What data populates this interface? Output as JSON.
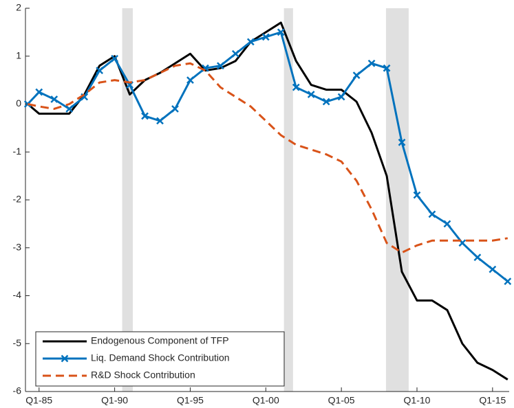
{
  "chart_data": {
    "type": "line",
    "x": [
      1984.25,
      1985,
      1986,
      1987,
      1988,
      1989,
      1990,
      1991,
      1992,
      1993,
      1994,
      1995,
      1996,
      1997,
      1998,
      1999,
      2000,
      2001,
      2002,
      2003,
      2004,
      2005,
      2006,
      2007,
      2008,
      2009,
      2010,
      2011,
      2012,
      2013,
      2014,
      2015,
      2016
    ],
    "series": [
      {
        "name": "Endogenous Component of TFP",
        "color": "#000000",
        "style": "solid",
        "values": [
          0,
          -0.2,
          -0.2,
          -0.2,
          0.2,
          0.8,
          1.0,
          0.2,
          0.5,
          0.65,
          0.85,
          1.05,
          0.7,
          0.75,
          0.9,
          1.3,
          1.5,
          1.7,
          0.9,
          0.4,
          0.3,
          0.3,
          0.05,
          -0.6,
          -1.5,
          -3.5,
          -4.1,
          -4.1,
          -4.3,
          -5.0,
          -5.4,
          -5.55,
          -5.75
        ]
      },
      {
        "name": "Liq. Demand Shock Contribution",
        "color": "#0072bd",
        "style": "solid-x",
        "values": [
          0,
          0.25,
          0.1,
          -0.1,
          0.15,
          0.7,
          0.95,
          0.4,
          -0.25,
          -0.35,
          -0.1,
          0.5,
          0.75,
          0.8,
          1.05,
          1.3,
          1.4,
          1.5,
          0.35,
          0.2,
          0.05,
          0.15,
          0.6,
          0.85,
          0.75,
          -0.8,
          -1.9,
          -2.3,
          -2.5,
          -2.9,
          -3.2,
          -3.45,
          -3.7
        ]
      },
      {
        "name": "R&D Shock Contribution",
        "color": "#d95319",
        "style": "dashed",
        "values": [
          0,
          -0.05,
          -0.1,
          0,
          0.2,
          0.45,
          0.5,
          0.45,
          0.5,
          0.65,
          0.8,
          0.85,
          0.7,
          0.35,
          0.15,
          -0.05,
          -0.35,
          -0.65,
          -0.85,
          -0.95,
          -1.05,
          -1.2,
          -1.6,
          -2.2,
          -2.9,
          -3.1,
          -2.95,
          -2.85,
          -2.85,
          -2.85,
          -2.85,
          -2.85,
          -2.8
        ]
      }
    ],
    "recessions": [
      [
        1990.5,
        1991.2
      ],
      [
        2001.2,
        2001.8
      ],
      [
        2007.95,
        2009.45
      ]
    ],
    "xlim": [
      1984.1,
      2016.1
    ],
    "xticks": [
      {
        "value": 1985,
        "label": "Q1-85"
      },
      {
        "value": 1990,
        "label": "Q1-90"
      },
      {
        "value": 1995,
        "label": "Q1-95"
      },
      {
        "value": 2000,
        "label": "Q1-00"
      },
      {
        "value": 2005,
        "label": "Q1-05"
      },
      {
        "value": 2010,
        "label": "Q1-10"
      },
      {
        "value": 2015,
        "label": "Q1-15"
      }
    ],
    "ylim": [
      -6,
      2
    ],
    "yticks": [
      -6,
      -5,
      -4,
      -3,
      -2,
      -1,
      0,
      1,
      2
    ],
    "legend": "lower left"
  }
}
